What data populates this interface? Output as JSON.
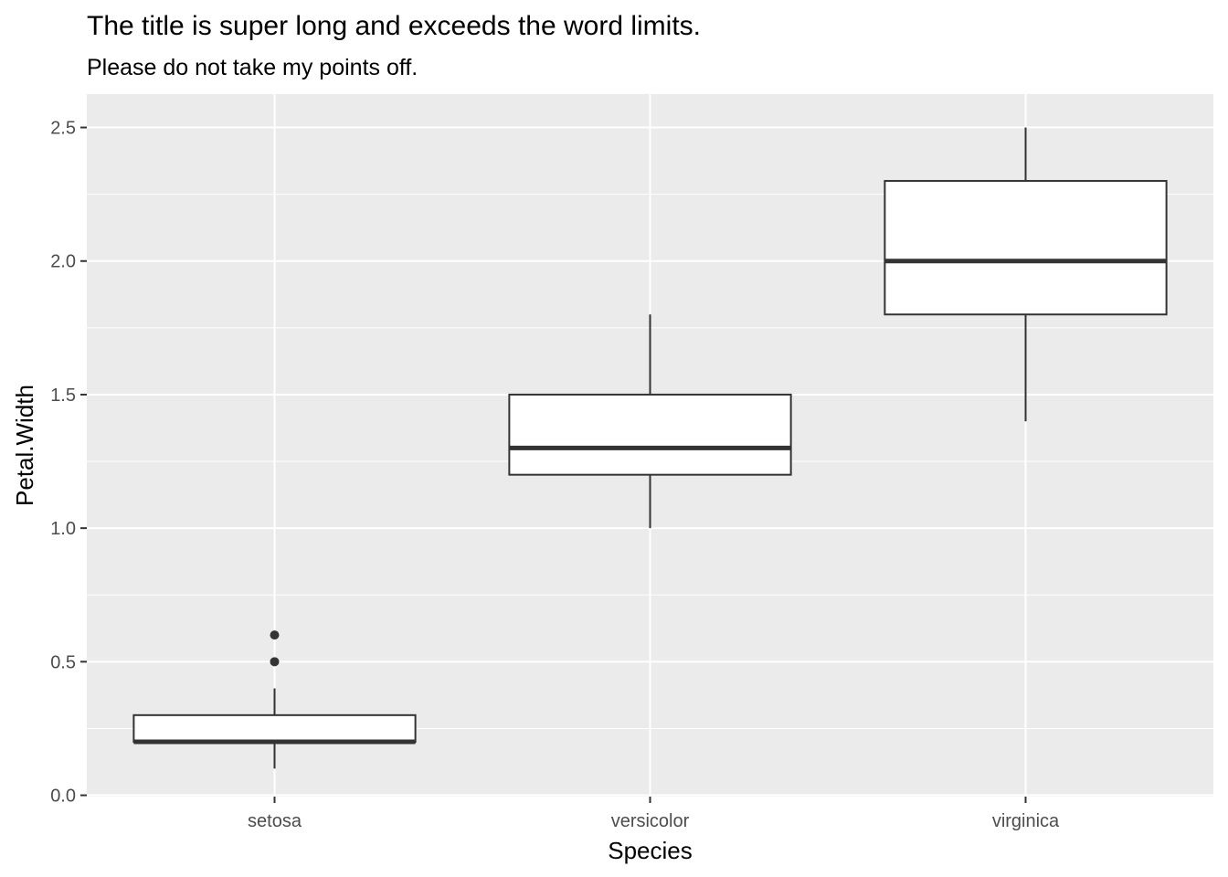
{
  "chart_data": {
    "type": "boxplot",
    "title": "The title is super long and exceeds the word limits.",
    "subtitle": "Please do not take my points off.",
    "xlabel": "Species",
    "ylabel": "Petal.Width",
    "ylim": [
      -0.005,
      2.625
    ],
    "yticks": [
      "0.0",
      "0.5",
      "1.0",
      "1.5",
      "2.0",
      "2.5"
    ],
    "ytick_values": [
      0,
      0.5,
      1.0,
      1.5,
      2.0,
      2.5
    ],
    "categories": [
      "setosa",
      "versicolor",
      "virginica"
    ],
    "boxes": [
      {
        "category": "setosa",
        "whisker_low": 0.1,
        "q1": 0.2,
        "median": 0.2,
        "q3": 0.3,
        "whisker_high": 0.4,
        "outliers": [
          0.5,
          0.6
        ]
      },
      {
        "category": "versicolor",
        "whisker_low": 1.0,
        "q1": 1.2,
        "median": 1.3,
        "q3": 1.5,
        "whisker_high": 1.8,
        "outliers": []
      },
      {
        "category": "virginica",
        "whisker_low": 1.4,
        "q1": 1.8,
        "median": 2.0,
        "q3": 2.3,
        "whisker_high": 2.5,
        "outliers": []
      }
    ],
    "grid": true,
    "panel_background": "#ebebeb",
    "grid_color": "#ffffff",
    "box_fill": "#ffffff",
    "box_stroke": "#333333"
  }
}
